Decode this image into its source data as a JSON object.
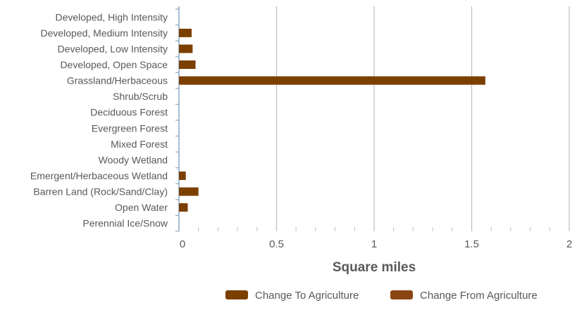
{
  "chart_data": {
    "type": "bar",
    "orientation": "horizontal",
    "title": "",
    "xlabel": "Square miles",
    "ylabel": "",
    "xlim": [
      0,
      2
    ],
    "xticks": [
      0,
      0.5,
      1,
      1.5,
      2
    ],
    "xtick_labels": [
      "0",
      "0.5",
      "1",
      "1.5",
      "2"
    ],
    "grid": "vertical major gridlines",
    "legend_position": "bottom-right",
    "categories": [
      "Developed, High Intensity",
      "Developed, Medium Intensity",
      "Developed, Low Intensity",
      "Developed, Open Space",
      "Grassland/Herbaceous",
      "Shrub/Scrub",
      "Deciduous Forest",
      "Evergreen Forest",
      "Mixed Forest",
      "Woody Wetland",
      "Emergent/Herbaceous Wetland",
      "Barren Land (Rock/Sand/Clay)",
      "Open Water",
      "Perennial Ice/Snow"
    ],
    "series": [
      {
        "name": "Change To Agriculture",
        "color": "#7B3F00",
        "values": [
          0,
          0.065,
          0.07,
          0.085,
          1.57,
          0,
          0,
          0,
          0,
          0,
          0.035,
          0.1,
          0.045,
          0
        ]
      },
      {
        "name": "Change From Agriculture",
        "color": "#8B4513",
        "values": [
          0,
          0,
          0,
          0,
          0,
          0,
          0,
          0,
          0,
          0,
          0,
          0,
          0,
          0
        ]
      }
    ]
  }
}
